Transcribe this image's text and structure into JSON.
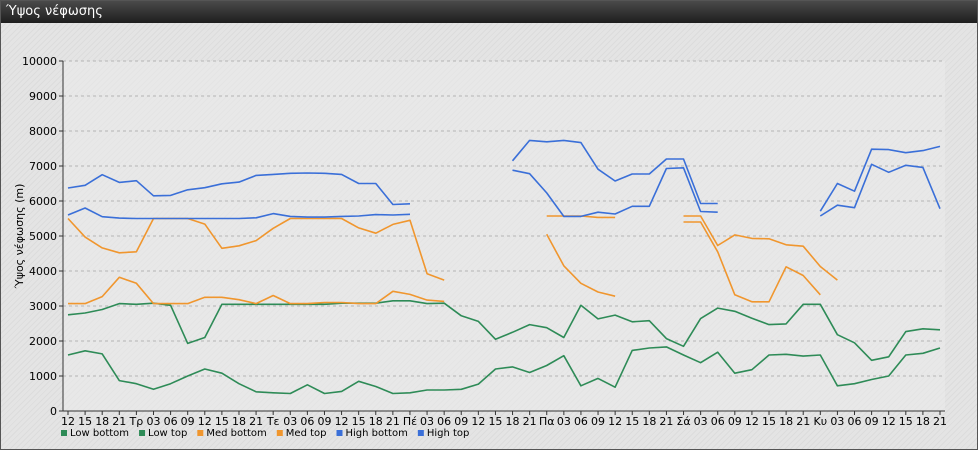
{
  "window": {
    "title": "Ύψος νέφωσης"
  },
  "colors": {
    "low_bottom": "#2e8b57",
    "low_top": "#2e8b57",
    "med_bottom": "#f0962e",
    "med_top": "#f0962e",
    "high_bottom": "#3a6fd8",
    "high_top": "#3a6fd8"
  },
  "chart_data": {
    "type": "line",
    "ylabel": "Ύψος νέφωσης (m)",
    "xlabel": "",
    "ylim": [
      0,
      10000
    ],
    "yticks": [
      0,
      1000,
      2000,
      3000,
      4000,
      5000,
      6000,
      7000,
      8000,
      9000,
      10000
    ],
    "grid": true,
    "legend_position": "bottom-left",
    "categories": [
      "12",
      "15",
      "18",
      "21",
      "Τρ",
      "03",
      "06",
      "09",
      "12",
      "15",
      "18",
      "21",
      "Τε",
      "03",
      "06",
      "09",
      "12",
      "15",
      "18",
      "21",
      "Πέ",
      "03",
      "06",
      "09",
      "12",
      "15",
      "18",
      "21",
      "Πα",
      "03",
      "06",
      "09",
      "12",
      "15",
      "18",
      "21",
      "Σά",
      "03",
      "06",
      "09",
      "12",
      "15",
      "18",
      "21",
      "Κυ",
      "03",
      "06",
      "09",
      "12",
      "15",
      "18",
      "21"
    ],
    "series": [
      {
        "name": "Low bottom",
        "color_key": "low_bottom",
        "values": [
          1600,
          1720,
          1630,
          870,
          780,
          620,
          780,
          1000,
          1200,
          1080,
          780,
          550,
          520,
          500,
          750,
          500,
          560,
          850,
          700,
          500,
          520,
          600,
          600,
          620,
          770,
          1200,
          1260,
          1100,
          1300,
          1580,
          720,
          930,
          680,
          1730,
          1800,
          1830,
          1600,
          1380,
          1680,
          1080,
          1180,
          1600,
          1620,
          1570,
          1600,
          720,
          780,
          900,
          1000,
          1600,
          1650,
          1800
        ]
      },
      {
        "name": "Low top",
        "color_key": "low_top",
        "values": [
          2750,
          2800,
          2900,
          3070,
          3050,
          3080,
          3020,
          1930,
          2100,
          3050,
          3050,
          3050,
          3050,
          3050,
          3050,
          3050,
          3080,
          3080,
          3080,
          3150,
          3150,
          3070,
          3080,
          2720,
          2560,
          2050,
          2250,
          2470,
          2380,
          2100,
          3020,
          2630,
          2740,
          2550,
          2580,
          2070,
          1850,
          2640,
          2940,
          2850,
          2650,
          2470,
          2490,
          3050,
          3050,
          2180,
          1950,
          1450,
          1550,
          2270,
          2350,
          2320
        ]
      },
      {
        "name": "Med bottom",
        "color_key": "med_bottom",
        "values": [
          3070,
          3070,
          3270,
          3820,
          3650,
          3070,
          3070,
          3070,
          3250,
          3250,
          3180,
          3070,
          3300,
          3070,
          3070,
          3100,
          3100,
          3070,
          3070,
          3420,
          3330,
          3170,
          3130,
          null,
          null,
          null,
          null,
          null,
          5050,
          4150,
          3650,
          3400,
          3280,
          null,
          null,
          null,
          5400,
          5400,
          4550,
          3320,
          3120,
          3120,
          4120,
          3870,
          3320,
          null,
          null,
          null,
          null,
          null,
          null,
          null
        ]
      },
      {
        "name": "Med top",
        "color_key": "med_top",
        "values": [
          5500,
          4970,
          4660,
          4520,
          4550,
          5500,
          5500,
          5500,
          5340,
          4650,
          4720,
          4870,
          5220,
          5500,
          5500,
          5500,
          5500,
          5230,
          5080,
          5330,
          5450,
          3920,
          3740,
          null,
          null,
          null,
          null,
          null,
          5570,
          5570,
          5570,
          5530,
          5530,
          null,
          null,
          null,
          5570,
          5570,
          4730,
          5030,
          4930,
          4920,
          4750,
          4710,
          4130,
          3740,
          null,
          null,
          null,
          null,
          null,
          null
        ]
      },
      {
        "name": "High bottom",
        "color_key": "high_bottom",
        "values": [
          5600,
          5800,
          5550,
          5510,
          5500,
          5500,
          5500,
          5500,
          5500,
          5500,
          5500,
          5520,
          5640,
          5560,
          5540,
          5540,
          5560,
          5570,
          5610,
          5600,
          5620,
          null,
          null,
          null,
          null,
          null,
          6880,
          6780,
          6230,
          5560,
          5560,
          5680,
          5630,
          5850,
          5850,
          6930,
          6950,
          5700,
          5680,
          null,
          null,
          null,
          null,
          null,
          5570,
          5880,
          5810,
          7050,
          6820,
          7020,
          6960,
          5780
        ]
      },
      {
        "name": "High top",
        "color_key": "high_top",
        "values": [
          6370,
          6450,
          6750,
          6530,
          6580,
          6150,
          6160,
          6320,
          6380,
          6490,
          6540,
          6730,
          6760,
          6790,
          6800,
          6790,
          6760,
          6500,
          6500,
          5900,
          5920,
          null,
          null,
          null,
          null,
          null,
          7150,
          7730,
          7690,
          7730,
          7670,
          6910,
          6570,
          6770,
          6770,
          7200,
          7200,
          5930,
          5930,
          null,
          null,
          null,
          null,
          null,
          5710,
          6500,
          6280,
          7480,
          7470,
          7380,
          7440,
          7560
        ]
      }
    ]
  }
}
